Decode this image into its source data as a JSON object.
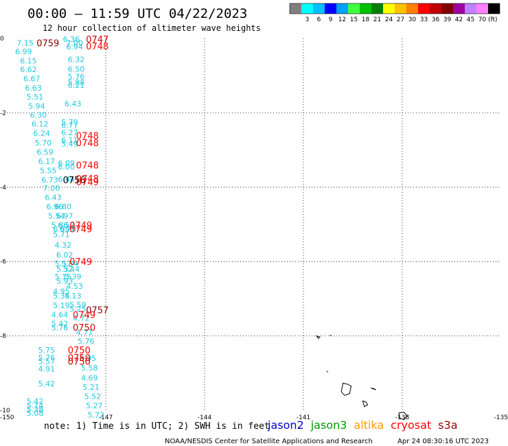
{
  "header": {
    "title": "00:00 – 11:59 UTC 04/22/2023",
    "subtitle": "12 hour collection of altimeter wave heights"
  },
  "colorbar": {
    "unit": "(ft)",
    "swatches": [
      {
        "color": "#808080",
        "label": ""
      },
      {
        "color": "#00ffff",
        "label": "3"
      },
      {
        "color": "#00c0ff",
        "label": "6"
      },
      {
        "color": "#0000ff",
        "label": "9"
      },
      {
        "color": "#00a0ff",
        "label": "12"
      },
      {
        "color": "#40ff40",
        "label": "15"
      },
      {
        "color": "#00c000",
        "label": "18"
      },
      {
        "color": "#008000",
        "label": "21"
      },
      {
        "color": "#ffff00",
        "label": "24"
      },
      {
        "color": "#ffc000",
        "label": "27"
      },
      {
        "color": "#ff8000",
        "label": "30"
      },
      {
        "color": "#ff0000",
        "label": "33"
      },
      {
        "color": "#c00000",
        "label": "36"
      },
      {
        "color": "#800000",
        "label": "39"
      },
      {
        "color": "#a000a0",
        "label": "42"
      },
      {
        "color": "#c080ff",
        "label": "45"
      },
      {
        "color": "#ff80ff",
        "label": "70"
      },
      {
        "color": "#000000",
        "label": ""
      }
    ]
  },
  "footer": {
    "note": "note: 1) Time is in UTC; 2) SWH is in feet",
    "credit": "NOAA/NESDIS Center for Satellite Applications and Research",
    "timestamp": "Apr 24 08:30:16 UTC 2023",
    "missions": [
      {
        "name": "jason2",
        "color": "#0000cc"
      },
      {
        "name": "jason3",
        "color": "#009900"
      },
      {
        "name": "altika",
        "color": "#ff9900"
      },
      {
        "name": "cryosat",
        "color": "#ff0000"
      },
      {
        "name": "s3a",
        "color": "#990000"
      }
    ]
  },
  "chart_data": {
    "type": "scatter",
    "xlim": [
      -150,
      -135
    ],
    "ylim": [
      -10,
      0
    ],
    "x_ticks": [
      "-150",
      "-147",
      "-144",
      "-141",
      "-138",
      "-135"
    ],
    "y_ticks": [
      "0",
      "-2",
      "-4",
      "-6",
      "-8",
      "-10"
    ],
    "grid": true,
    "wave_color": "#20c8e0",
    "wave_heights": [
      {
        "x": -149.7,
        "y": -0.12,
        "v": "7.15"
      },
      {
        "x": -149.75,
        "y": -0.35,
        "v": "6.99"
      },
      {
        "x": -149.6,
        "y": -0.6,
        "v": "6.15"
      },
      {
        "x": -149.6,
        "y": -0.83,
        "v": "6.62"
      },
      {
        "x": -149.5,
        "y": -1.08,
        "v": "6.67"
      },
      {
        "x": -149.45,
        "y": -1.33,
        "v": "6.63"
      },
      {
        "x": -149.4,
        "y": -1.57,
        "v": "5.51"
      },
      {
        "x": -149.35,
        "y": -1.82,
        "v": "5.94"
      },
      {
        "x": -149.3,
        "y": -2.06,
        "v": "6.30"
      },
      {
        "x": -149.25,
        "y": -2.3,
        "v": "6.12"
      },
      {
        "x": -149.2,
        "y": -2.55,
        "v": "6.24"
      },
      {
        "x": -149.15,
        "y": -2.8,
        "v": "5.70"
      },
      {
        "x": -149.1,
        "y": -3.05,
        "v": "6.59"
      },
      {
        "x": -149.05,
        "y": -3.3,
        "v": "6.17"
      },
      {
        "x": -149.0,
        "y": -3.55,
        "v": "5.55"
      },
      {
        "x": -148.95,
        "y": -3.8,
        "v": "6.73"
      },
      {
        "x": -148.9,
        "y": -4.02,
        "v": "7.00"
      },
      {
        "x": -148.85,
        "y": -4.27,
        "v": "6.43"
      },
      {
        "x": -148.8,
        "y": -4.52,
        "v": "6.96"
      },
      {
        "x": -148.55,
        "y": -4.52,
        "v": "6.80"
      },
      {
        "x": -148.75,
        "y": -4.77,
        "v": "5.54"
      },
      {
        "x": -148.5,
        "y": -4.77,
        "v": "6.97"
      },
      {
        "x": -148.65,
        "y": -5.02,
        "v": "5.86"
      },
      {
        "x": -148.45,
        "y": -5.02,
        "v": "6.57"
      },
      {
        "x": -148.6,
        "y": -5.12,
        "v": "6.89"
      },
      {
        "x": -148.4,
        "y": -5.12,
        "v": "6.28"
      },
      {
        "x": -148.6,
        "y": -5.27,
        "v": "5.71"
      },
      {
        "x": -148.55,
        "y": -5.55,
        "v": "4.32"
      },
      {
        "x": -148.5,
        "y": -5.82,
        "v": "6.02"
      },
      {
        "x": -148.55,
        "y": -6.05,
        "v": "5.57"
      },
      {
        "x": -148.35,
        "y": -6.05,
        "v": "5.84"
      },
      {
        "x": -148.5,
        "y": -6.2,
        "v": "5.32"
      },
      {
        "x": -148.3,
        "y": -6.2,
        "v": "5.44"
      },
      {
        "x": -148.55,
        "y": -6.4,
        "v": "5.15"
      },
      {
        "x": -148.5,
        "y": -6.52,
        "v": "5.93"
      },
      {
        "x": -148.25,
        "y": -6.4,
        "v": "5.39"
      },
      {
        "x": -148.2,
        "y": -6.66,
        "v": "4.53"
      },
      {
        "x": -148.6,
        "y": -6.8,
        "v": "4.95"
      },
      {
        "x": -148.6,
        "y": -6.92,
        "v": "5.34"
      },
      {
        "x": -148.25,
        "y": -6.92,
        "v": "5.13"
      },
      {
        "x": -148.6,
        "y": -7.18,
        "v": "5.19"
      },
      {
        "x": -148.1,
        "y": -7.16,
        "v": "5.59"
      },
      {
        "x": -148.1,
        "y": -7.27,
        "v": "5.25"
      },
      {
        "x": -148.65,
        "y": -7.43,
        "v": "4.64"
      },
      {
        "x": -148.0,
        "y": -7.52,
        "v": "4.72"
      },
      {
        "x": -148.65,
        "y": -7.67,
        "v": "5.42"
      },
      {
        "x": -148.65,
        "y": -7.78,
        "v": "5.76"
      },
      {
        "x": -147.9,
        "y": -7.9,
        "v": "4.71"
      },
      {
        "x": -147.85,
        "y": -8.14,
        "v": "5.76"
      },
      {
        "x": -149.05,
        "y": -8.38,
        "v": "5.75"
      },
      {
        "x": -149.05,
        "y": -8.58,
        "v": "5.76"
      },
      {
        "x": -149.05,
        "y": -8.68,
        "v": "5.57"
      },
      {
        "x": -147.8,
        "y": -8.6,
        "v": "5.95"
      },
      {
        "x": -149.05,
        "y": -8.88,
        "v": "4.91"
      },
      {
        "x": -147.75,
        "y": -8.86,
        "v": "5.58"
      },
      {
        "x": -147.75,
        "y": -9.12,
        "v": "4.69"
      },
      {
        "x": -149.05,
        "y": -9.28,
        "v": "5.42"
      },
      {
        "x": -147.7,
        "y": -9.37,
        "v": "5.21"
      },
      {
        "x": -147.65,
        "y": -9.62,
        "v": "5.52"
      },
      {
        "x": -149.4,
        "y": -9.75,
        "v": "5.42"
      },
      {
        "x": -149.4,
        "y": -9.87,
        "v": "5.74"
      },
      {
        "x": -149.4,
        "y": -9.97,
        "v": "5.38"
      },
      {
        "x": -147.6,
        "y": -9.87,
        "v": "5.27"
      },
      {
        "x": -149.4,
        "y": -10.07,
        "v": "5.08"
      },
      {
        "x": -147.55,
        "y": -10.12,
        "v": "5.72"
      },
      {
        "x": -148.3,
        "y": -0.02,
        "v": "6.36"
      },
      {
        "x": -148.2,
        "y": -0.12,
        "v": "7.00"
      },
      {
        "x": -148.2,
        "y": -0.22,
        "v": "6.94"
      },
      {
        "x": -148.15,
        "y": -0.56,
        "v": "6.32"
      },
      {
        "x": -148.15,
        "y": -0.82,
        "v": "6.50"
      },
      {
        "x": -148.15,
        "y": -1.02,
        "v": "5.76"
      },
      {
        "x": -148.15,
        "y": -1.18,
        "v": "5.88"
      },
      {
        "x": -148.15,
        "y": -1.25,
        "v": "6.21"
      },
      {
        "x": -148.25,
        "y": -1.75,
        "v": "6.43"
      },
      {
        "x": -148.35,
        "y": -2.25,
        "v": "5.79"
      },
      {
        "x": -148.35,
        "y": -2.33,
        "v": "6.77"
      },
      {
        "x": -148.35,
        "y": -2.53,
        "v": "6.27"
      },
      {
        "x": -148.35,
        "y": -2.73,
        "v": "6.11"
      },
      {
        "x": -148.35,
        "y": -2.83,
        "v": "5.49"
      },
      {
        "x": -148.45,
        "y": -3.35,
        "v": "6.09"
      },
      {
        "x": -148.45,
        "y": -3.45,
        "v": "6.00"
      },
      {
        "x": -148.45,
        "y": -3.78,
        "v": "6.44"
      }
    ],
    "time_labels": [
      {
        "x": -149.1,
        "y": -0.12,
        "t": "0759",
        "color": "#8b0000"
      },
      {
        "x": -147.6,
        "y": -0.02,
        "t": "0747",
        "color": "#cc0000"
      },
      {
        "x": -147.6,
        "y": -0.2,
        "t": "0748",
        "color": "#ff0000"
      },
      {
        "x": -147.9,
        "y": -2.61,
        "t": "0748",
        "color": "#ff0000"
      },
      {
        "x": -147.9,
        "y": -2.8,
        "t": "0748",
        "color": "#ff0000"
      },
      {
        "x": -147.9,
        "y": -3.4,
        "t": "0748",
        "color": "#ff0000"
      },
      {
        "x": -148.3,
        "y": -3.8,
        "t": "0756",
        "color": "#000000"
      },
      {
        "x": -147.9,
        "y": -3.76,
        "t": "0748",
        "color": "#ff0000"
      },
      {
        "x": -147.9,
        "y": -3.86,
        "t": "0749",
        "color": "#ff0000"
      },
      {
        "x": -148.1,
        "y": -5.02,
        "t": "0749",
        "color": "#ff0000"
      },
      {
        "x": -148.1,
        "y": -5.12,
        "t": "0749",
        "color": "#ff0000"
      },
      {
        "x": -148.1,
        "y": -6.0,
        "t": "0749",
        "color": "#ff0000"
      },
      {
        "x": -147.6,
        "y": -7.3,
        "t": "0757",
        "color": "#8b0000"
      },
      {
        "x": -148.0,
        "y": -7.43,
        "t": "0749",
        "color": "#ff0000"
      },
      {
        "x": -148.0,
        "y": -7.77,
        "t": "0750",
        "color": "#cc0000"
      },
      {
        "x": -148.15,
        "y": -8.38,
        "t": "0750",
        "color": "#ff0000"
      },
      {
        "x": -148.15,
        "y": -8.58,
        "t": "0750",
        "color": "#ff0000"
      },
      {
        "x": -148.15,
        "y": -8.68,
        "t": "0750",
        "color": "#cc0000"
      }
    ],
    "islands": [
      [
        [
          -140.6,
          -8.0
        ],
        [
          -140.5,
          -8.03
        ],
        [
          -140.55,
          -8.07
        ]
      ],
      [
        [
          -140.2,
          -7.97
        ],
        [
          -140.15,
          -8.0
        ]
      ],
      [
        [
          -140.3,
          -8.95
        ],
        [
          -140.25,
          -8.97
        ]
      ],
      [
        [
          -139.8,
          -9.27
        ],
        [
          -139.65,
          -9.3
        ],
        [
          -139.55,
          -9.35
        ],
        [
          -139.6,
          -9.55
        ],
        [
          -139.75,
          -9.6
        ],
        [
          -139.85,
          -9.5
        ]
      ],
      [
        [
          -138.95,
          -9.4
        ],
        [
          -138.85,
          -9.42
        ],
        [
          -138.8,
          -9.45
        ]
      ],
      [
        [
          -139.2,
          -9.75
        ],
        [
          -139.1,
          -9.78
        ],
        [
          -139.05,
          -9.85
        ],
        [
          -139.15,
          -9.9
        ]
      ],
      [
        [
          -138.1,
          -10.07
        ],
        [
          -137.95,
          -10.05
        ],
        [
          -137.85,
          -10.15
        ],
        [
          -137.95,
          -10.25
        ],
        [
          -138.1,
          -10.2
        ]
      ]
    ]
  }
}
